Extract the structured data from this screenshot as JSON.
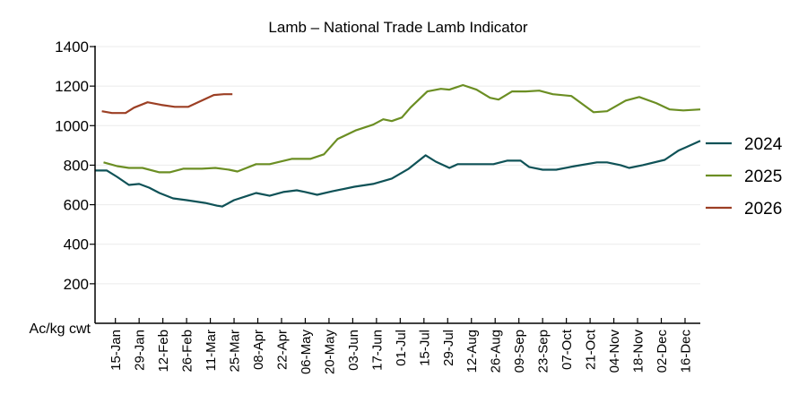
{
  "chart_data": {
    "type": "line",
    "title": "Lamb – National Trade Lamb Indicator",
    "xlabel": "",
    "ylabel": "Ac/kg cwt",
    "y_unit_label": "Ac/kg cwt",
    "ylim": [
      0,
      1400
    ],
    "xlim_day_of_year": [
      3,
      360
    ],
    "y_ticks": [
      200,
      400,
      600,
      800,
      1000,
      1200,
      1400
    ],
    "y_tick_labels": [
      "200",
      "400",
      "600",
      "800",
      "1000",
      "1200",
      "1400"
    ],
    "x_ticks_day_of_year": [
      15,
      29,
      43,
      57,
      71,
      85,
      99,
      113,
      127,
      141,
      155,
      169,
      183,
      197,
      211,
      225,
      239,
      253,
      267,
      281,
      295,
      309,
      323,
      337,
      351
    ],
    "x_tick_labels": [
      "15-Jan",
      "29-Jan",
      "12-Feb",
      "26-Feb",
      "11-Mar",
      "25-Mar",
      "08-Apr",
      "22-Apr",
      "06-May",
      "20-May",
      "03-Jun",
      "17-Jun",
      "01-Jul",
      "15-Jul",
      "29-Jul",
      "12-Aug",
      "26-Aug",
      "09-Sep",
      "23-Sep",
      "07-Oct",
      "21-Oct",
      "04-Nov",
      "18-Nov",
      "02-Dec",
      "16-Dec"
    ],
    "grid": "horizontal",
    "legend_position": "right",
    "series": [
      {
        "name": "2024",
        "color": "#0f5257",
        "x_day_of_year": [
          3,
          10,
          16,
          23,
          29,
          35,
          41,
          49,
          57,
          68,
          75,
          78,
          85,
          93,
          98,
          106,
          114,
          122,
          127,
          134,
          143,
          156,
          167,
          178,
          188,
          198,
          204,
          212,
          217,
          225,
          238,
          246,
          254,
          259,
          267,
          275,
          286,
          299,
          305,
          313,
          318,
          326,
          339,
          347,
          360
        ],
        "values": [
          773,
          773,
          741,
          700,
          705,
          686,
          659,
          632,
          623,
          609,
          595,
          591,
          623,
          645,
          659,
          645,
          664,
          673,
          664,
          650,
          668,
          691,
          705,
          732,
          782,
          850,
          818,
          786,
          805,
          805,
          805,
          823,
          823,
          791,
          777,
          777,
          795,
          814,
          814,
          800,
          786,
          800,
          827,
          873,
          923
        ]
      },
      {
        "name": "2025",
        "color": "#6b8e23",
        "x_day_of_year": [
          8,
          16,
          23,
          31,
          41,
          47,
          55,
          66,
          74,
          82,
          87,
          98,
          106,
          119,
          130,
          138,
          146,
          157,
          167,
          173,
          178,
          184,
          189,
          199,
          207,
          212,
          220,
          228,
          236,
          241,
          249,
          257,
          265,
          273,
          284,
          297,
          305,
          316,
          324,
          334,
          342,
          350,
          360
        ],
        "values": [
          814,
          795,
          786,
          786,
          764,
          764,
          782,
          782,
          786,
          777,
          768,
          805,
          805,
          832,
          832,
          855,
          932,
          977,
          1005,
          1032,
          1023,
          1041,
          1091,
          1173,
          1186,
          1182,
          1205,
          1182,
          1141,
          1132,
          1173,
          1173,
          1177,
          1159,
          1150,
          1068,
          1073,
          1127,
          1145,
          1114,
          1082,
          1077,
          1082
        ]
      },
      {
        "name": "2026",
        "color": "#9c3f24",
        "x_day_of_year": [
          7,
          13,
          21,
          26,
          34,
          42,
          50,
          58,
          66,
          73,
          79,
          84
        ],
        "values": [
          1073,
          1064,
          1064,
          1091,
          1118,
          1105,
          1095,
          1095,
          1127,
          1155,
          1159,
          1159
        ]
      }
    ]
  }
}
